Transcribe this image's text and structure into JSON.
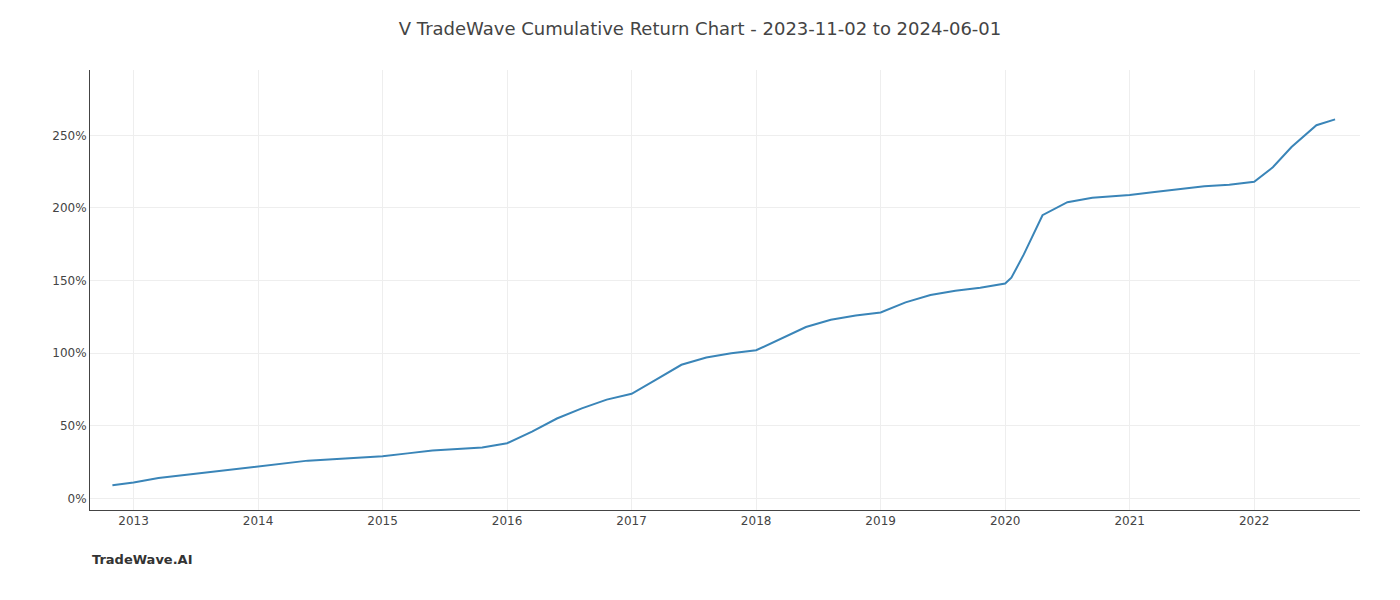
{
  "chart_data": {
    "type": "line",
    "title": "V TradeWave Cumulative Return Chart - 2023-11-02 to 2024-06-01",
    "annotations": [
      "TradeWave.AI"
    ],
    "x": [
      2012.83,
      2013.0,
      2013.2,
      2013.4,
      2013.6,
      2013.8,
      2014.0,
      2014.2,
      2014.4,
      2014.6,
      2014.8,
      2015.0,
      2015.2,
      2015.4,
      2015.6,
      2015.8,
      2016.0,
      2016.2,
      2016.4,
      2016.6,
      2016.8,
      2017.0,
      2017.2,
      2017.4,
      2017.6,
      2017.8,
      2018.0,
      2018.2,
      2018.4,
      2018.6,
      2018.8,
      2019.0,
      2019.2,
      2019.4,
      2019.6,
      2019.8,
      2020.0,
      2020.05,
      2020.15,
      2020.3,
      2020.5,
      2020.7,
      2020.9,
      2021.0,
      2021.2,
      2021.4,
      2021.6,
      2021.8,
      2022.0,
      2022.15,
      2022.3,
      2022.5,
      2022.65
    ],
    "values": [
      9,
      11,
      14,
      16,
      18,
      20,
      22,
      24,
      26,
      27,
      28,
      29,
      31,
      33,
      34,
      35,
      38,
      46,
      55,
      62,
      68,
      72,
      82,
      92,
      97,
      100,
      102,
      110,
      118,
      123,
      126,
      128,
      135,
      140,
      143,
      145,
      148,
      152,
      168,
      195,
      204,
      207,
      208,
      209,
      211,
      213,
      215,
      216,
      218,
      228,
      242,
      257,
      261
    ],
    "color": "#3a85b8",
    "xlim": [
      2012.65,
      2022.85
    ],
    "xticks": [
      2013,
      2014,
      2015,
      2016,
      2017,
      2018,
      2019,
      2020,
      2021,
      2022
    ],
    "ylim": [
      -8,
      295
    ],
    "yticks": [
      {
        "value": 0,
        "label": "0%"
      },
      {
        "value": 50,
        "label": "50%"
      },
      {
        "value": 100,
        "label": "100%"
      },
      {
        "value": 150,
        "label": "150%"
      },
      {
        "value": 200,
        "label": "200%"
      },
      {
        "value": 250,
        "label": "250%"
      }
    ],
    "grid": true
  }
}
